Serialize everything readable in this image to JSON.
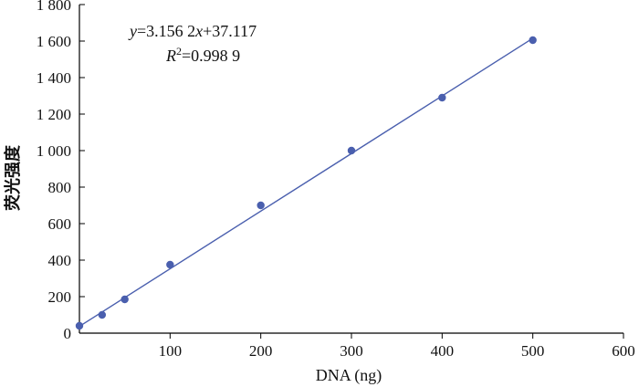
{
  "chart_data": {
    "type": "scatter",
    "title": "",
    "xlabel": "DNA (ng)",
    "ylabel": "荧光强度",
    "xlim": [
      0,
      600
    ],
    "ylim": [
      0,
      1800
    ],
    "x_ticks": [
      100,
      200,
      300,
      400,
      500,
      600
    ],
    "x_tick_labels": [
      "100",
      "200",
      "300",
      "400",
      "500",
      "600"
    ],
    "y_ticks": [
      0,
      200,
      400,
      600,
      800,
      1000,
      1200,
      1400,
      1600,
      1800
    ],
    "y_tick_labels": [
      "0",
      "200",
      "400",
      "600",
      "800",
      "1 000",
      "1 200",
      "1 400",
      "1 600",
      "1 800"
    ],
    "grid": false,
    "series": [
      {
        "x": [
          0,
          25,
          50,
          100,
          200,
          300,
          400,
          500
        ],
        "y": [
          40,
          100,
          185,
          375,
          700,
          1000,
          1290,
          1605
        ],
        "color": "#4a5fae"
      }
    ],
    "trendline": {
      "slope": 3.1562,
      "intercept": 37.117,
      "x_range": [
        0,
        500
      ],
      "color": "#4a5fae"
    },
    "annotations": {
      "equation": {
        "y": "y",
        "eq": "=3.156 2",
        "x": "x",
        "rest": "+37.117"
      },
      "r2": {
        "R": "R",
        "sup": "2",
        "rest": "=0.998 9"
      }
    }
  }
}
